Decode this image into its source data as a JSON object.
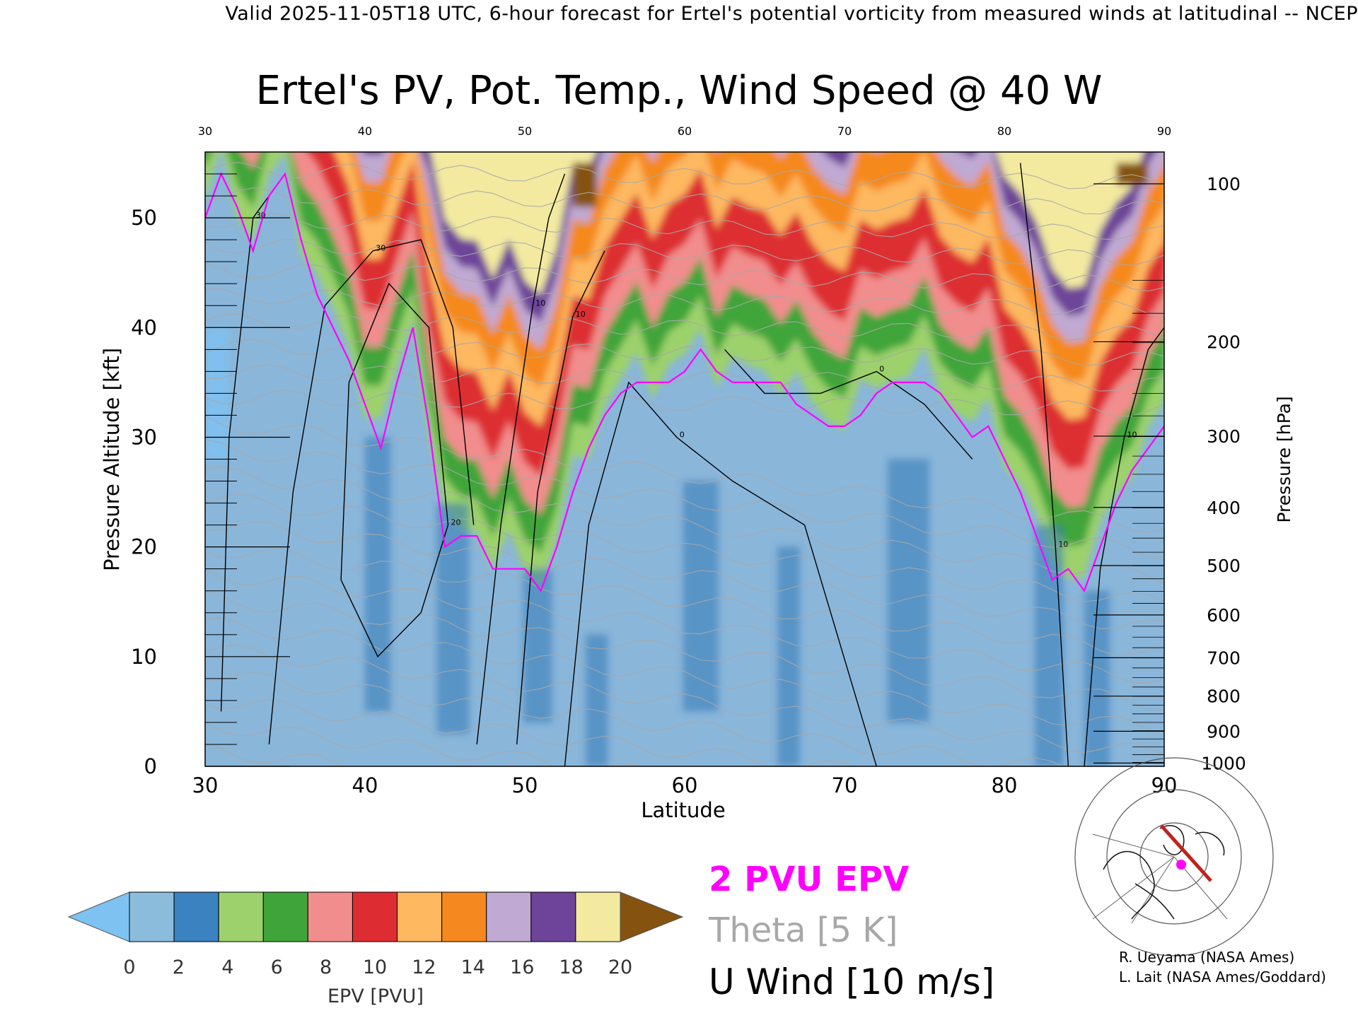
{
  "header": {
    "valid_line": "Valid 2025-11-05T18 UTC, 6-hour forecast for Ertel's potential vorticity from measured winds at latitudinal -- NCEP"
  },
  "chart_data": {
    "type": "heatmap",
    "title": "Ertel's PV, Pot. Temp., Wind Speed @ 40 W",
    "xlabel": "Latitude",
    "ylabel_left": "Pressure Altitude [kft]",
    "ylabel_right": "Pressure [hPa]",
    "xlim": [
      30,
      90
    ],
    "ylim": [
      0,
      56
    ],
    "x_ticks": [
      30,
      40,
      50,
      60,
      70,
      80,
      90
    ],
    "y_ticks": [
      0,
      10,
      20,
      30,
      40,
      50
    ],
    "pressure_ticks": [
      {
        "label": "100",
        "kft": 53.1
      },
      {
        "label": "200",
        "kft": 38.7
      },
      {
        "label": "300",
        "kft": 30.1
      },
      {
        "label": "400",
        "kft": 23.6
      },
      {
        "label": "500",
        "kft": 18.3
      },
      {
        "label": "600",
        "kft": 13.8
      },
      {
        "label": "700",
        "kft": 9.9
      },
      {
        "label": "800",
        "kft": 6.4
      },
      {
        "label": "900",
        "kft": 3.2
      },
      {
        "label": "1000",
        "kft": 0.3
      }
    ],
    "epv_colorbar": {
      "label": "EPV [PVU]",
      "ticks": [
        0,
        2,
        4,
        6,
        8,
        10,
        12,
        14,
        16,
        18,
        20
      ],
      "under_color": "#7ec2f2",
      "over_color": "#85520f",
      "colors": [
        "#8cbcdc",
        "#3a82c0",
        "#9cd16c",
        "#3fa53a",
        "#f28d8d",
        "#dd2d32",
        "#fdb860",
        "#f5891f",
        "#c0a9d2",
        "#6d4499",
        "#f3eaa0"
      ]
    },
    "tropopause_2pvu": {
      "lat": [
        30,
        31,
        32,
        33,
        34,
        35,
        36,
        37,
        38,
        39,
        40,
        41,
        42,
        43,
        44,
        45,
        46,
        47,
        48,
        49,
        50,
        51,
        52,
        53,
        54,
        55,
        56,
        57,
        58,
        59,
        60,
        61,
        62,
        63,
        64,
        65,
        66,
        67,
        68,
        69,
        70,
        71,
        72,
        73,
        74,
        75,
        76,
        77,
        78,
        79,
        80,
        81,
        82,
        83,
        84,
        85,
        86,
        87,
        88,
        89,
        90
      ],
      "kft": [
        50,
        54,
        51,
        47,
        52,
        54,
        48,
        43,
        40,
        37,
        33,
        29,
        35,
        40,
        31,
        20,
        21,
        21,
        18,
        18,
        18,
        16,
        20,
        25,
        29,
        32,
        34,
        35,
        35,
        35,
        36,
        38,
        36,
        35,
        35,
        35,
        35,
        33,
        32,
        31,
        31,
        32,
        34,
        35,
        35,
        35,
        34,
        32,
        30,
        31,
        28,
        25,
        21,
        17,
        18,
        16,
        20,
        24,
        27,
        29,
        31
      ]
    },
    "u_wind_contours": [
      {
        "level": "30",
        "lat": [
          31,
          31.5,
          33,
          34
        ],
        "kft": [
          5,
          30,
          50,
          52
        ]
      },
      {
        "level": "30",
        "lat": [
          34,
          35.5,
          37.5,
          40.5,
          43.5,
          45.5,
          46.8
        ],
        "kft": [
          2,
          25,
          42,
          47,
          48,
          40,
          22
        ]
      },
      {
        "level": "20",
        "lat": [
          38.5,
          39,
          41.5,
          44,
          45.2,
          43.5,
          40.8,
          38.5
        ],
        "kft": [
          17,
          35,
          44,
          40,
          22,
          14,
          10,
          17
        ]
      },
      {
        "level": "10",
        "lat": [
          47,
          48.5,
          50.5,
          51.5,
          52.5
        ],
        "kft": [
          2,
          22,
          42,
          50,
          54
        ]
      },
      {
        "level": "10",
        "lat": [
          49.5,
          50.8,
          53,
          55
        ],
        "kft": [
          2,
          25,
          41,
          47
        ]
      },
      {
        "level": "0",
        "lat": [
          52.5,
          54,
          56.5,
          59.5,
          63,
          67.5,
          72
        ],
        "kft": [
          0,
          22,
          35,
          30,
          26,
          22,
          0
        ]
      },
      {
        "level": "0",
        "lat": [
          62.5,
          65,
          68.5,
          72,
          75,
          78
        ],
        "kft": [
          38,
          34,
          34,
          36,
          33,
          28
        ]
      },
      {
        "level": "10",
        "lat": [
          81,
          82.3,
          83.2,
          84
        ],
        "kft": [
          55,
          38,
          20,
          0
        ]
      },
      {
        "level": "10",
        "lat": [
          85,
          86,
          87.5,
          89,
          90
        ],
        "kft": [
          0,
          18,
          30,
          38,
          40
        ]
      }
    ],
    "theta_levels": [
      280,
      290,
      300,
      310,
      320,
      330,
      340,
      350,
      360,
      370,
      380,
      390,
      400,
      410,
      420
    ]
  },
  "legend": {
    "epv_label": "2 PVU EPV",
    "theta_label": "Theta [5 K]",
    "wind_label": "U Wind [10 m/s]",
    "colors": {
      "epv": "#ff00ff",
      "theta": "#a8a8a8",
      "wind": "#000000"
    }
  },
  "credits": {
    "line1": "R. Ueyama (NASA Ames)",
    "line2": "L. Lait (NASA Ames/Goddard)"
  },
  "inset_map": {
    "path_color": "#c0231d",
    "marker_color": "#ff00ff"
  }
}
